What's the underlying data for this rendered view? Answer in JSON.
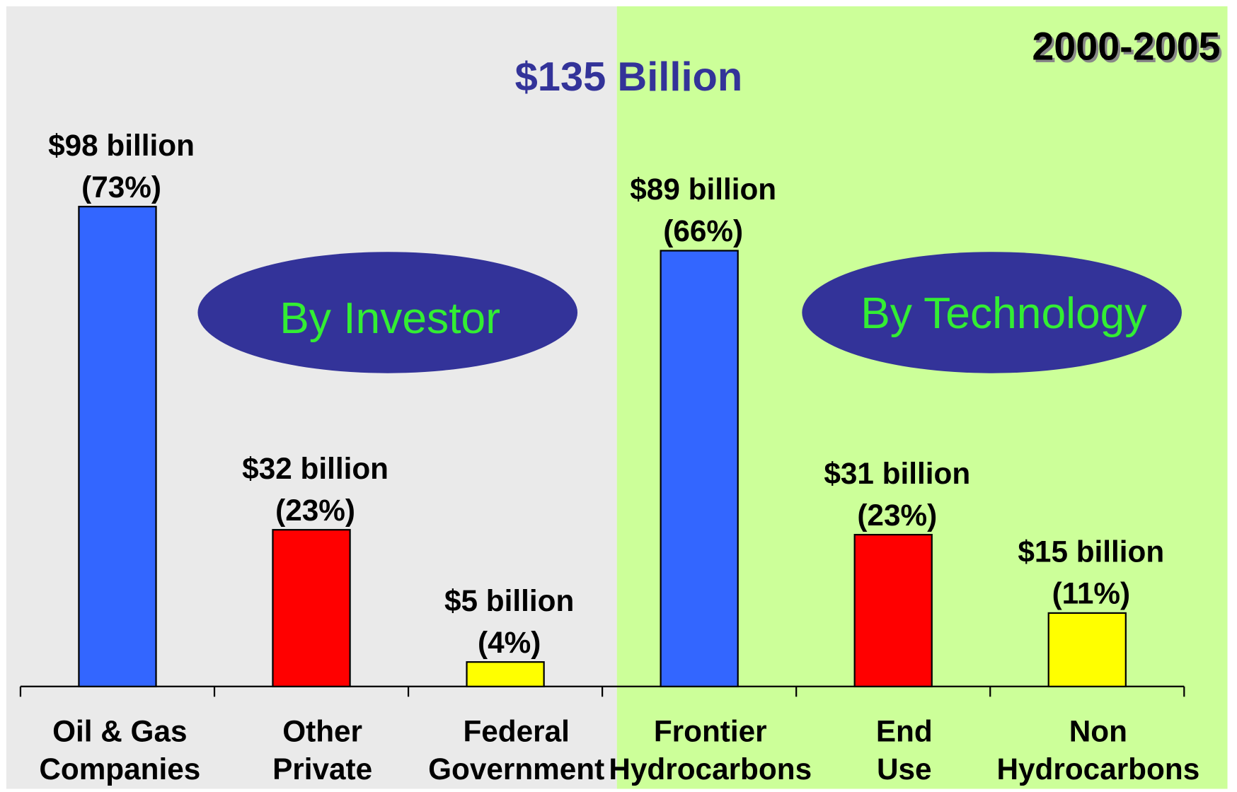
{
  "chart_data": {
    "type": "bar",
    "title": "$135 Billion",
    "period": "2000-2005",
    "groups": [
      {
        "label": "By Investor"
      },
      {
        "label": "By Technology"
      }
    ],
    "categories": [
      [
        "Oil & Gas",
        "Companies"
      ],
      [
        "Other",
        "Private"
      ],
      [
        "Federal",
        "Government"
      ],
      [
        "Frontier",
        "Hydrocarbons"
      ],
      [
        "End",
        "Use"
      ],
      [
        "Non",
        "Hydrocarbons"
      ]
    ],
    "values": [
      98,
      32,
      5,
      89,
      31,
      15
    ],
    "value_labels": [
      "$98 billion",
      "$32 billion",
      "$5 billion",
      "$89 billion",
      "$31 billion",
      "$15 billion"
    ],
    "shares": [
      73,
      23,
      4,
      66,
      23,
      11
    ],
    "share_labels": [
      "(73%)",
      "(23%)",
      "(4%)",
      "(66%)",
      "(23%)",
      "(11%)"
    ],
    "colors": [
      "#3366ff",
      "#ff0000",
      "#ffff00",
      "#3366ff",
      "#ff0000",
      "#ffff00"
    ]
  }
}
